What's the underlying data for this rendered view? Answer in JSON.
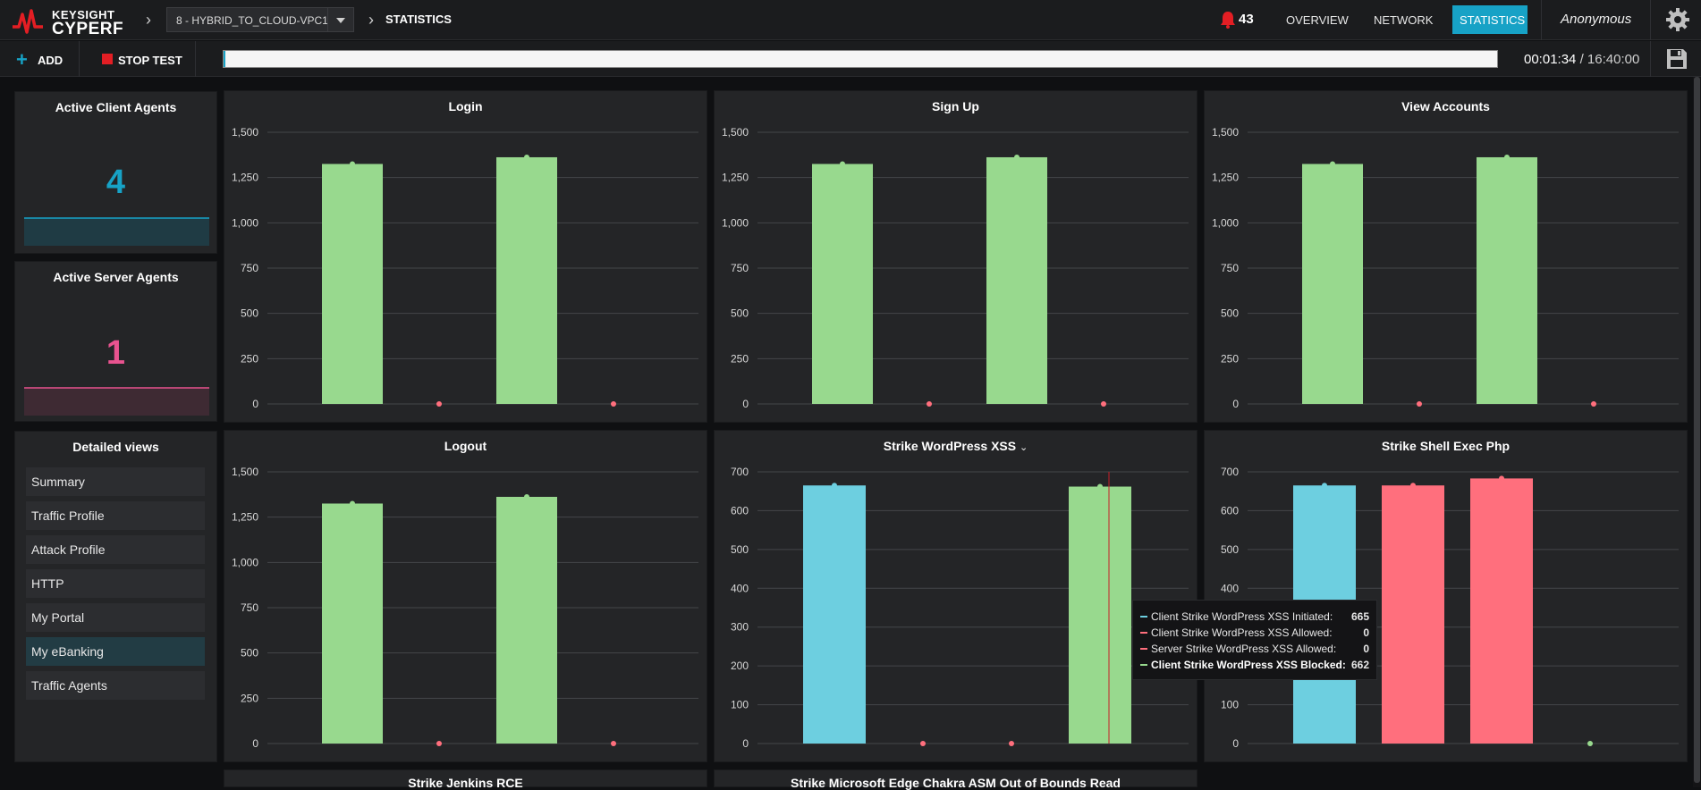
{
  "app": {
    "logo_top": "KEYSIGHT",
    "logo_bottom": "CYPERF",
    "session": "8 - HYBRID_TO_CLOUD-VPC1",
    "breadcrumb": "STATISTICS",
    "alert_count": "43",
    "nav": [
      "OVERVIEW",
      "NETWORK",
      "STATISTICS"
    ],
    "active_nav": "STATISTICS",
    "user": "Anonymous"
  },
  "toolbar": {
    "add_label": "ADD",
    "stop_label": "STOP TEST",
    "progress_fraction": 0.0016,
    "elapsed": "00:01:34",
    "separator": "/",
    "total": "16:40:00"
  },
  "agents": {
    "client": {
      "title": "Active Client Agents",
      "value": "4",
      "color": "#17a2c6"
    },
    "server": {
      "title": "Active Server Agents",
      "value": "1",
      "color": "#e8538f"
    }
  },
  "detailed_views": {
    "title": "Detailed views",
    "items": [
      "Summary",
      "Traffic Profile",
      "Attack Profile",
      "HTTP",
      "My Portal",
      "My eBanking",
      "Traffic Agents"
    ],
    "selected": "My eBanking"
  },
  "colors": {
    "green": "#98d98e",
    "cyan": "#6dcfe0",
    "red": "#ff6f7d"
  },
  "chart_data": [
    {
      "type": "bar",
      "title": "Login",
      "ticks": [
        "0",
        "250",
        "500",
        "750",
        "1,000",
        "1,250",
        "1,500"
      ],
      "ylim": [
        0,
        1500
      ],
      "values": [
        1325,
        0,
        1362,
        0
      ],
      "series_colors": [
        "green",
        "red",
        "green",
        "red"
      ]
    },
    {
      "type": "bar",
      "title": "Sign Up",
      "ticks": [
        "0",
        "250",
        "500",
        "750",
        "1,000",
        "1,250",
        "1,500"
      ],
      "ylim": [
        0,
        1500
      ],
      "values": [
        1325,
        0,
        1362,
        0
      ],
      "series_colors": [
        "green",
        "red",
        "green",
        "red"
      ]
    },
    {
      "type": "bar",
      "title": "View Accounts",
      "ticks": [
        "0",
        "250",
        "500",
        "750",
        "1,000",
        "1,250",
        "1,500"
      ],
      "ylim": [
        0,
        1500
      ],
      "values": [
        1325,
        0,
        1362,
        0
      ],
      "series_colors": [
        "green",
        "red",
        "green",
        "red"
      ]
    },
    {
      "type": "bar",
      "title": "Logout",
      "ticks": [
        "0",
        "250",
        "500",
        "750",
        "1,000",
        "1,250",
        "1,500"
      ],
      "ylim": [
        0,
        1500
      ],
      "values": [
        1325,
        0,
        1362,
        0
      ],
      "series_colors": [
        "green",
        "red",
        "green",
        "red"
      ]
    },
    {
      "type": "bar",
      "title": "Strike WordPress XSS",
      "has_dropdown": true,
      "ticks": [
        "0",
        "100",
        "200",
        "300",
        "400",
        "500",
        "600",
        "700"
      ],
      "ylim": [
        0,
        700
      ],
      "series": [
        {
          "name": "Client Strike WordPress XSS Initiated",
          "value": 665,
          "color": "cyan"
        },
        {
          "name": "Client Strike WordPress XSS Allowed",
          "value": 0,
          "color": "red"
        },
        {
          "name": "Server Strike WordPress XSS Allowed",
          "value": 0,
          "color": "red"
        },
        {
          "name": "Client Strike WordPress XSS Blocked",
          "value": 662,
          "color": "green"
        }
      ],
      "tooltip": {
        "rows": [
          {
            "name": "Client Strike WordPress XSS Initiated:",
            "value": "665",
            "color": "cyan",
            "bold": false
          },
          {
            "name": "Client Strike WordPress XSS Allowed:",
            "value": "0",
            "color": "red",
            "bold": false
          },
          {
            "name": "Server Strike WordPress XSS Allowed:",
            "value": "0",
            "color": "red",
            "bold": false
          },
          {
            "name": "Client Strike WordPress XSS Blocked:",
            "value": "662",
            "color": "green",
            "bold": true
          }
        ]
      }
    },
    {
      "type": "bar",
      "title": "Strike Shell Exec Php",
      "ticks": [
        "0",
        "100",
        "200",
        "300",
        "400",
        "500",
        "600",
        "700"
      ],
      "ylim": [
        0,
        700
      ],
      "values": [
        665,
        665,
        683,
        0
      ],
      "series_colors": [
        "cyan",
        "red",
        "red",
        "green"
      ]
    },
    {
      "type": "bar",
      "title": "Strike Jenkins RCE"
    },
    {
      "type": "bar",
      "title": "Strike Microsoft Edge Chakra ASM Out of Bounds Read"
    }
  ]
}
